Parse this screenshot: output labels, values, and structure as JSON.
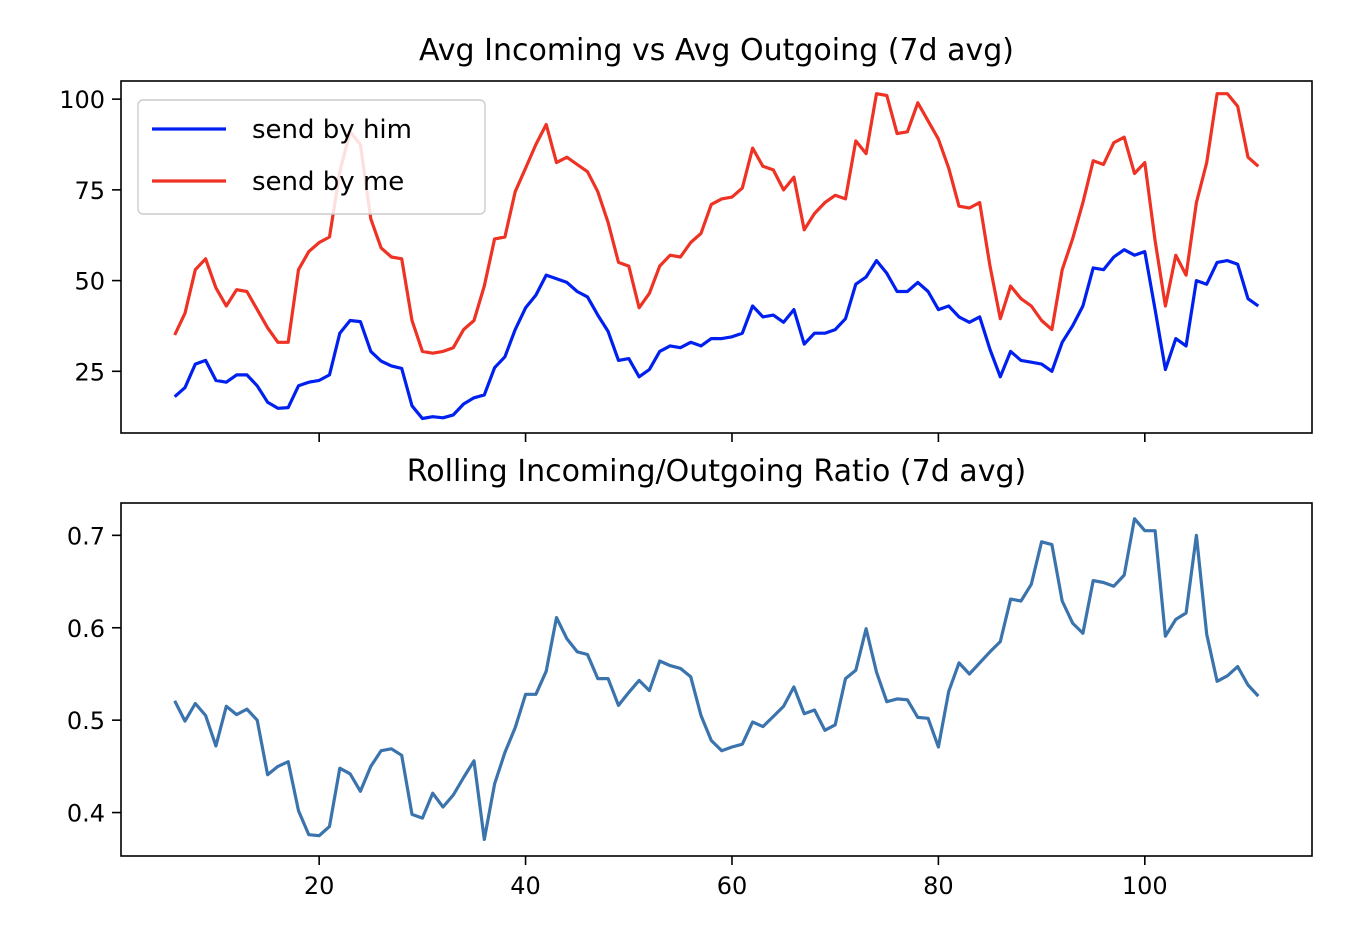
{
  "chart_data": [
    {
      "type": "line",
      "title": "Avg Incoming vs Avg Outgoing (7d avg)",
      "xlabel": "",
      "ylabel": "",
      "xlim": [
        0.8,
        116.2
      ],
      "ylim": [
        8,
        105
      ],
      "x_ticks": [
        20,
        40,
        60,
        80,
        100
      ],
      "y_ticks": [
        25,
        50,
        75,
        100
      ],
      "x_tick_labels_visible": false,
      "grid": false,
      "legend": {
        "position": "top-left",
        "entries": [
          "send by him",
          "send by me"
        ]
      },
      "x": [
        6,
        7,
        8,
        9,
        10,
        11,
        12,
        13,
        14,
        15,
        16,
        17,
        18,
        19,
        20,
        21,
        22,
        23,
        24,
        25,
        26,
        27,
        28,
        29,
        30,
        31,
        32,
        33,
        34,
        35,
        36,
        37,
        38,
        39,
        40,
        41,
        42,
        43,
        44,
        45,
        46,
        47,
        48,
        49,
        50,
        51,
        52,
        53,
        54,
        55,
        56,
        57,
        58,
        59,
        60,
        61,
        62,
        63,
        64,
        65,
        66,
        67,
        68,
        69,
        70,
        71,
        72,
        73,
        74,
        75,
        76,
        77,
        78,
        79,
        80,
        81,
        82,
        83,
        84,
        85,
        86,
        87,
        88,
        89,
        90,
        91,
        92,
        93,
        94,
        95,
        96,
        97,
        98,
        99,
        100,
        101,
        102,
        103,
        104,
        105,
        106,
        107,
        108,
        109,
        110,
        111
      ],
      "series": [
        {
          "name": "send by him",
          "color": "#0020f0",
          "values": [
            18,
            20.5,
            27,
            28,
            22.5,
            22,
            24,
            24,
            21,
            16.5,
            14.8,
            15,
            21,
            22,
            22.5,
            24,
            35.5,
            39,
            38.7,
            30.5,
            27.8,
            26.5,
            25.8,
            15.5,
            12,
            12.5,
            12.2,
            13,
            16,
            17.7,
            18.5,
            26,
            29,
            36.5,
            42.5,
            46,
            51.5,
            50.5,
            49.5,
            47,
            45.5,
            40.5,
            36,
            28,
            28.5,
            23.5,
            25.5,
            30.5,
            32,
            31.5,
            33,
            32,
            34,
            34,
            34.5,
            35.5,
            43,
            40,
            40.5,
            38.5,
            42,
            32.5,
            35.5,
            35.5,
            36.5,
            39.5,
            49,
            51,
            55.5,
            52,
            47,
            47,
            49.5,
            47,
            42,
            43,
            40,
            38.5,
            40,
            31,
            23.5,
            30.5,
            28,
            27.5,
            27,
            25,
            33,
            37.5,
            43,
            53.5,
            53,
            56.5,
            58.5,
            57,
            58,
            42,
            25.5,
            34,
            32,
            50,
            49,
            55,
            55.5,
            54.5,
            45,
            43
          ]
        },
        {
          "name": "send by me",
          "color": "#ee3224",
          "values": [
            35,
            41,
            53,
            56,
            48,
            43,
            47.5,
            47,
            42,
            37,
            33,
            33,
            53,
            58,
            60.5,
            62,
            80,
            91,
            87.5,
            67,
            59,
            56.5,
            56,
            39,
            30.5,
            30,
            30.5,
            31.5,
            36.5,
            39,
            48.5,
            61.5,
            62,
            74.5,
            81,
            87.5,
            93,
            82.5,
            84,
            82,
            80,
            74.5,
            66,
            55,
            54,
            42.5,
            46.5,
            54,
            57,
            56.5,
            60.5,
            63,
            71,
            72.5,
            73,
            75.5,
            86.5,
            81.5,
            80.5,
            75,
            78.5,
            64,
            68.5,
            71.5,
            73.5,
            72.5,
            88.5,
            85,
            101.5,
            101,
            90.5,
            91,
            99,
            94,
            89,
            81,
            70.5,
            70,
            71.5,
            54,
            39.5,
            48.5,
            45,
            43,
            39,
            36.5,
            53,
            61.5,
            71.5,
            83,
            82,
            88,
            89.5,
            79.5,
            82.5,
            61,
            43,
            57,
            51.5,
            71.5,
            82.5,
            101.5,
            101.5,
            98,
            84,
            81.5
          ]
        }
      ]
    },
    {
      "type": "line",
      "title": "Rolling Incoming/Outgoing Ratio (7d avg)",
      "xlabel": "",
      "ylabel": "",
      "xlim": [
        0.8,
        116.2
      ],
      "ylim": [
        0.353,
        0.735
      ],
      "x_ticks": [
        20,
        40,
        60,
        80,
        100
      ],
      "y_ticks": [
        0.4,
        0.5,
        0.6,
        0.7
      ],
      "x_tick_labels": [
        "20",
        "40",
        "60",
        "80",
        "100"
      ],
      "y_tick_labels": [
        "0.4",
        "0.5",
        "0.6",
        "0.7"
      ],
      "grid": false,
      "x": [
        6,
        7,
        8,
        9,
        10,
        11,
        12,
        13,
        14,
        15,
        16,
        17,
        18,
        19,
        20,
        21,
        22,
        23,
        24,
        25,
        26,
        27,
        28,
        29,
        30,
        31,
        32,
        33,
        34,
        35,
        36,
        37,
        38,
        39,
        40,
        41,
        42,
        43,
        44,
        45,
        46,
        47,
        48,
        49,
        50,
        51,
        52,
        53,
        54,
        55,
        56,
        57,
        58,
        59,
        60,
        61,
        62,
        63,
        64,
        65,
        66,
        67,
        68,
        69,
        70,
        71,
        72,
        73,
        74,
        75,
        76,
        77,
        78,
        79,
        80,
        81,
        82,
        83,
        84,
        85,
        86,
        87,
        88,
        89,
        90,
        91,
        92,
        93,
        94,
        95,
        96,
        97,
        98,
        99,
        100,
        101,
        102,
        103,
        104,
        105,
        106,
        107,
        108,
        109,
        110,
        111
      ],
      "series": [
        {
          "name": "",
          "color": "#3b73ad",
          "values": [
            0.521,
            0.499,
            0.518,
            0.505,
            0.472,
            0.515,
            0.506,
            0.512,
            0.5,
            0.441,
            0.45,
            0.455,
            0.402,
            0.376,
            0.375,
            0.385,
            0.448,
            0.442,
            0.423,
            0.45,
            0.467,
            0.469,
            0.462,
            0.398,
            0.394,
            0.421,
            0.406,
            0.419,
            0.438,
            0.456,
            0.371,
            0.431,
            0.465,
            0.492,
            0.528,
            0.528,
            0.553,
            0.611,
            0.588,
            0.574,
            0.571,
            0.545,
            0.545,
            0.516,
            0.53,
            0.543,
            0.532,
            0.564,
            0.559,
            0.556,
            0.547,
            0.505,
            0.478,
            0.467,
            0.471,
            0.474,
            0.498,
            0.493,
            0.504,
            0.515,
            0.536,
            0.507,
            0.511,
            0.489,
            0.495,
            0.545,
            0.554,
            0.599,
            0.552,
            0.52,
            0.523,
            0.522,
            0.503,
            0.502,
            0.471,
            0.531,
            0.562,
            0.55,
            0.562,
            0.574,
            0.585,
            0.631,
            0.629,
            0.647,
            0.693,
            0.69,
            0.629,
            0.605,
            0.594,
            0.651,
            0.649,
            0.645,
            0.657,
            0.718,
            0.705,
            0.705,
            0.591,
            0.609,
            0.616,
            0.7,
            0.593,
            0.542,
            0.548,
            0.558,
            0.538,
            0.526
          ]
        }
      ]
    }
  ]
}
